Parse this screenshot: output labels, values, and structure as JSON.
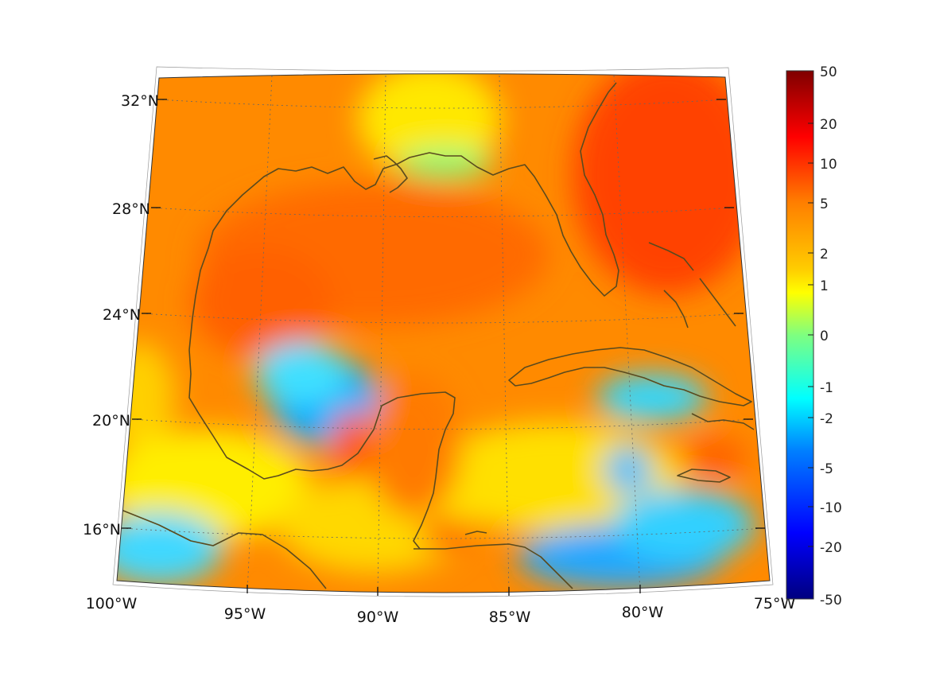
{
  "map": {
    "lon_labels": [
      "100°W",
      "95°W",
      "90°W",
      "85°W",
      "80°W",
      "75°W"
    ],
    "lat_labels": [
      "16°N",
      "20°N",
      "24°N",
      "28°N",
      "32°N"
    ]
  },
  "colorbar": {
    "tick_labels": [
      "50",
      "20",
      "10",
      "5",
      "2",
      "1",
      "0",
      "-1",
      "-2",
      "-5",
      "-10",
      "-20",
      "-50"
    ],
    "colors": [
      "#7f0000",
      "#ff0000",
      "#ff7f00",
      "#ffff00",
      "#7fff7f",
      "#00ffff",
      "#007fff",
      "#0000ff",
      "#00007f"
    ]
  },
  "colors": {
    "coastline": "#5a4a1e",
    "grid": "#666666",
    "dominant": "#ff8a00"
  }
}
